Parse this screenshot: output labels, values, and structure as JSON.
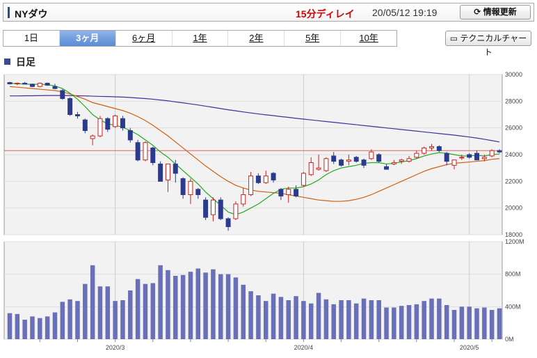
{
  "header": {
    "title": "NYダウ",
    "delay": "15分ディレイ",
    "timestamp": "20/05/12 19:19",
    "refresh_label": "情報更新"
  },
  "tabs": [
    {
      "label": "1日",
      "active": false
    },
    {
      "label": "3ヶ月",
      "active": true
    },
    {
      "label": "6ヶ月",
      "active": false
    },
    {
      "label": "1年",
      "active": false
    },
    {
      "label": "2年",
      "active": false
    },
    {
      "label": "5年",
      "active": false
    },
    {
      "label": "10年",
      "active": false
    }
  ],
  "technical_chart_label": "テクニカルチャート",
  "section_title": "日足",
  "colors": {
    "up": "#cc2222",
    "down": "#2b3a8c",
    "ma_short": "#22aa22",
    "ma_mid": "#d06010",
    "ma_long": "#4a2a9a",
    "ref_line": "#e06060",
    "volume": "#6a70b8"
  },
  "chart_data": [
    {
      "type": "candlestick",
      "ylim": [
        18000,
        30000
      ],
      "y_ticks": [
        18000,
        20000,
        22000,
        24000,
        26000,
        28000,
        30000
      ],
      "x_ticks": [
        "2020/3",
        "2020/4",
        "2020/5"
      ],
      "reference_price": 24300,
      "ohlc": [
        [
          29400,
          29450,
          29250,
          29300
        ],
        [
          29300,
          29400,
          29200,
          29350
        ],
        [
          29350,
          29450,
          29250,
          29280
        ],
        [
          29280,
          29320,
          29050,
          29100
        ],
        [
          29100,
          29400,
          29050,
          29350
        ],
        [
          29350,
          29400,
          29150,
          29200
        ],
        [
          29100,
          29300,
          28900,
          28950
        ],
        [
          28800,
          28900,
          28100,
          28200
        ],
        [
          28200,
          28300,
          26900,
          27000
        ],
        [
          27000,
          27200,
          26700,
          26900
        ],
        [
          26600,
          26700,
          25600,
          25800
        ],
        [
          25200,
          25500,
          24700,
          25400
        ],
        [
          25400,
          26900,
          25300,
          26700
        ],
        [
          26700,
          26800,
          25700,
          25900
        ],
        [
          26100,
          27000,
          26000,
          26900
        ],
        [
          26700,
          26900,
          25800,
          26000
        ],
        [
          25800,
          26000,
          24900,
          25100
        ],
        [
          24900,
          25100,
          23500,
          23600
        ],
        [
          23600,
          25000,
          23500,
          24900
        ],
        [
          24500,
          24600,
          23200,
          23400
        ],
        [
          23300,
          23500,
          22000,
          22000
        ],
        [
          22100,
          23300,
          21200,
          23300
        ],
        [
          23300,
          23600,
          21900,
          22600
        ],
        [
          22200,
          22300,
          20700,
          21000
        ],
        [
          21000,
          22200,
          20300,
          22000
        ],
        [
          21400,
          21500,
          20700,
          21000
        ],
        [
          20600,
          20800,
          19100,
          19300
        ],
        [
          19500,
          20800,
          19000,
          20600
        ],
        [
          20600,
          20800,
          19100,
          19200
        ],
        [
          19200,
          19300,
          18300,
          18600
        ],
        [
          19200,
          20500,
          19100,
          20300
        ],
        [
          20300,
          21500,
          20100,
          21000
        ],
        [
          21000,
          22700,
          20900,
          22400
        ],
        [
          22400,
          22600,
          21800,
          21900
        ],
        [
          21900,
          22800,
          21800,
          22400
        ],
        [
          22600,
          22700,
          21900,
          22100
        ],
        [
          21400,
          21500,
          20600,
          20900
        ],
        [
          21000,
          21600,
          20400,
          21400
        ],
        [
          21400,
          21700,
          20800,
          20900
        ],
        [
          21700,
          22700,
          21600,
          22600
        ],
        [
          22500,
          23800,
          22400,
          23400
        ],
        [
          22900,
          24000,
          22800,
          23000
        ],
        [
          22800,
          23800,
          22700,
          23700
        ],
        [
          23900,
          24200,
          23300,
          23500
        ],
        [
          23600,
          23700,
          23100,
          23200
        ],
        [
          23500,
          24000,
          23200,
          23600
        ],
        [
          23800,
          23900,
          23400,
          23500
        ],
        [
          23600,
          23700,
          23000,
          23200
        ],
        [
          23700,
          24400,
          23600,
          24200
        ],
        [
          24000,
          24100,
          23400,
          23500
        ],
        [
          23100,
          23300,
          22900,
          22900
        ],
        [
          23300,
          23600,
          23200,
          23400
        ],
        [
          23500,
          23700,
          23300,
          23600
        ],
        [
          23500,
          23900,
          23400,
          23700
        ],
        [
          23800,
          24300,
          23700,
          24100
        ],
        [
          24100,
          24600,
          24000,
          24500
        ],
        [
          24500,
          24800,
          24300,
          24600
        ],
        [
          24600,
          24700,
          24200,
          24300
        ],
        [
          24100,
          24200,
          23200,
          23500
        ],
        [
          23200,
          23600,
          22900,
          23600
        ],
        [
          23800,
          24000,
          23600,
          23800
        ],
        [
          24000,
          24100,
          23700,
          23800
        ],
        [
          24100,
          24300,
          23700,
          23600
        ],
        [
          23700,
          24000,
          23500,
          23800
        ],
        [
          23900,
          24400,
          23800,
          24300
        ],
        [
          24300,
          24400,
          24100,
          24200
        ]
      ],
      "ma_short": [
        29350,
        29310,
        29300,
        29250,
        29280,
        29230,
        29150,
        28950,
        28600,
        28150,
        27600,
        27000,
        26600,
        26300,
        26200,
        26050,
        25800,
        25500,
        25100,
        24700,
        24200,
        23800,
        23300,
        22800,
        22300,
        21800,
        21200,
        20700,
        20200,
        19700,
        19500,
        19700,
        20000,
        20300,
        20700,
        21100,
        21400,
        21500,
        21500,
        21600,
        21800,
        22100,
        22500,
        22800,
        23000,
        23100,
        23200,
        23350,
        23400,
        23400,
        23300,
        23350,
        23450,
        23550,
        23700,
        23900,
        24050,
        24150,
        24100,
        24000,
        23900,
        23900,
        23950,
        23900,
        24000,
        24050
      ],
      "ma_mid": [
        29100,
        29050,
        29000,
        28950,
        28900,
        28850,
        28800,
        28700,
        28550,
        28350,
        28150,
        27900,
        27750,
        27600,
        27450,
        27300,
        27100,
        26850,
        26550,
        26200,
        25800,
        25400,
        24950,
        24500,
        24050,
        23600,
        23150,
        22750,
        22350,
        22000,
        21700,
        21500,
        21350,
        21250,
        21200,
        21150,
        21100,
        21000,
        20900,
        20800,
        20700,
        20600,
        20550,
        20500,
        20500,
        20550,
        20650,
        20800,
        21000,
        21250,
        21500,
        21750,
        22000,
        22250,
        22500,
        22750,
        22950,
        23100,
        23250,
        23350,
        23400,
        23450,
        23500,
        23550,
        23650,
        23700
      ],
      "ma_long": [
        28400,
        28400,
        28410,
        28410,
        28420,
        28430,
        28430,
        28430,
        28420,
        28410,
        28400,
        28380,
        28360,
        28350,
        28330,
        28310,
        28280,
        28240,
        28200,
        28150,
        28090,
        28030,
        27950,
        27880,
        27800,
        27720,
        27630,
        27540,
        27450,
        27360,
        27280,
        27200,
        27120,
        27050,
        26980,
        26920,
        26850,
        26790,
        26720,
        26660,
        26600,
        26540,
        26480,
        26420,
        26360,
        26300,
        26240,
        26180,
        26120,
        26060,
        26000,
        25940,
        25880,
        25820,
        25760,
        25700,
        25640,
        25580,
        25520,
        25460,
        25390,
        25320,
        25240,
        25150,
        25050,
        24950
      ]
    },
    {
      "type": "bar",
      "ylim": [
        0,
        1200
      ],
      "y_tick_labels": [
        "0M",
        "400M",
        "800M",
        "1200M"
      ],
      "values": [
        320,
        310,
        240,
        280,
        260,
        280,
        330,
        460,
        490,
        470,
        680,
        910,
        650,
        650,
        470,
        480,
        600,
        740,
        680,
        690,
        910,
        850,
        780,
        790,
        830,
        870,
        820,
        860,
        800,
        800,
        760,
        670,
        590,
        540,
        470,
        560,
        520,
        480,
        530,
        470,
        440,
        570,
        490,
        430,
        480,
        480,
        440,
        500,
        480,
        480,
        390,
        390,
        410,
        420,
        430,
        470,
        500,
        500,
        420,
        360,
        400,
        400,
        380,
        390,
        360,
        380
      ]
    }
  ]
}
